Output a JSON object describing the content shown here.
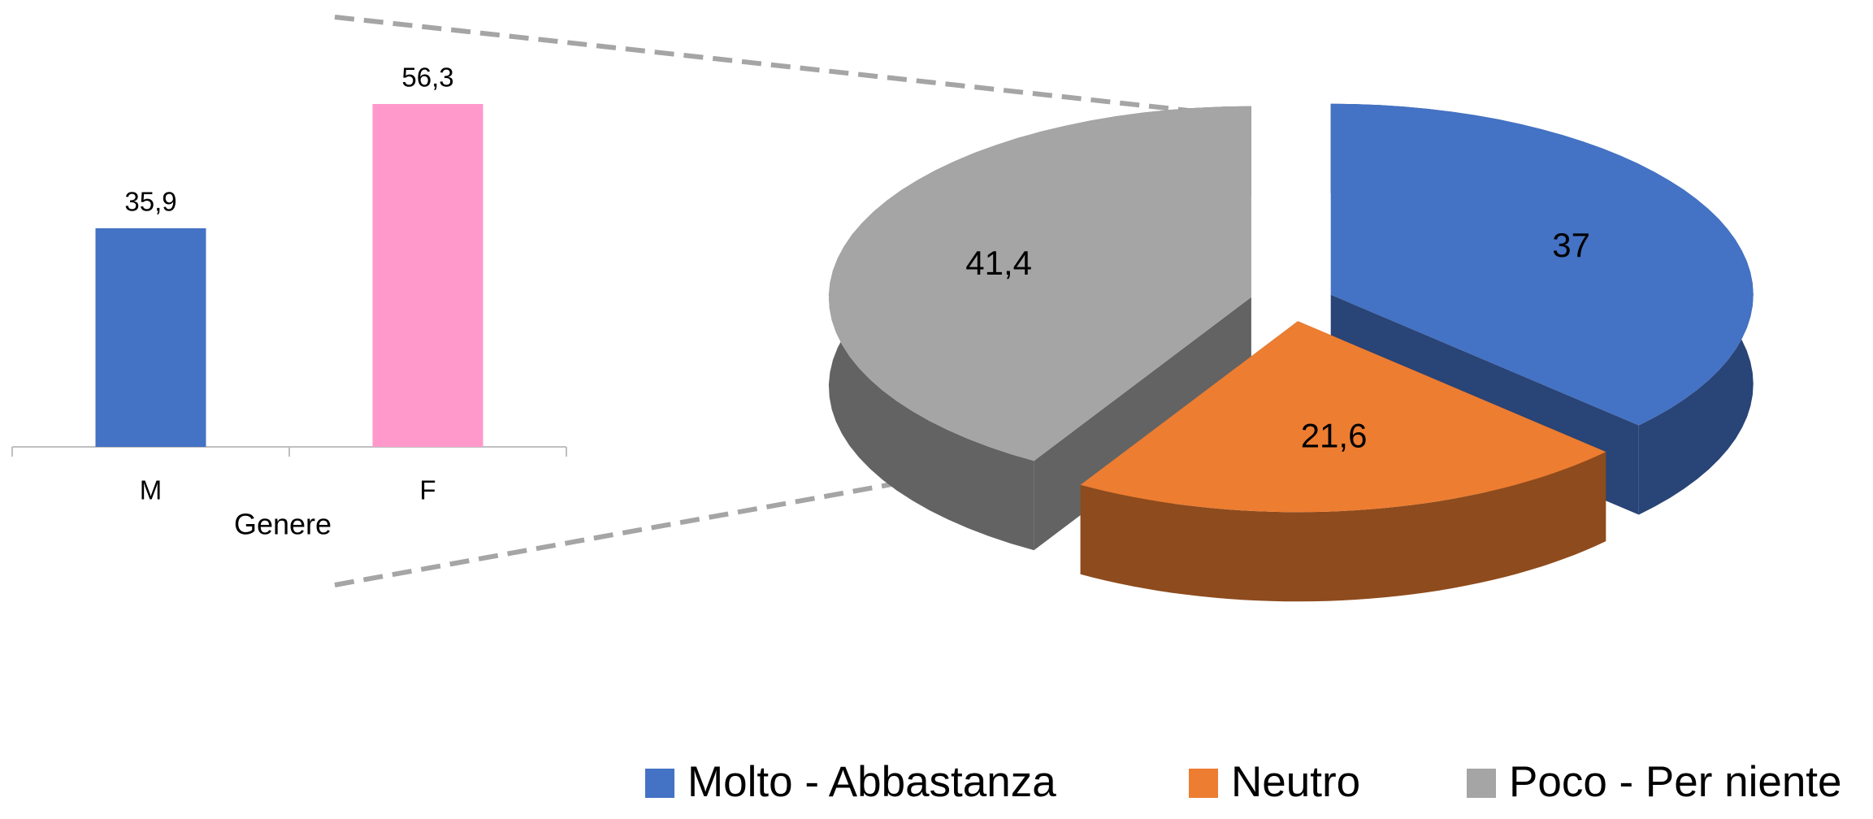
{
  "chart_data": [
    {
      "type": "bar",
      "x_label": "Genere",
      "categories": [
        "M",
        "F"
      ],
      "values": [
        35.9,
        56.3
      ],
      "value_labels": [
        "35,9",
        "56,3"
      ],
      "colors": [
        "#4472c4",
        "#ff99cc"
      ]
    },
    {
      "type": "pie",
      "categories": [
        "Molto - Abbastanza",
        "Neutro",
        "Poco - Per niente"
      ],
      "values": [
        37,
        21.6,
        41.4
      ],
      "value_labels": [
        "37",
        "21,6",
        "41,4"
      ],
      "colors": [
        "#4472c4",
        "#ed7d31",
        "#a5a5a5"
      ],
      "legend": "bottom"
    }
  ]
}
